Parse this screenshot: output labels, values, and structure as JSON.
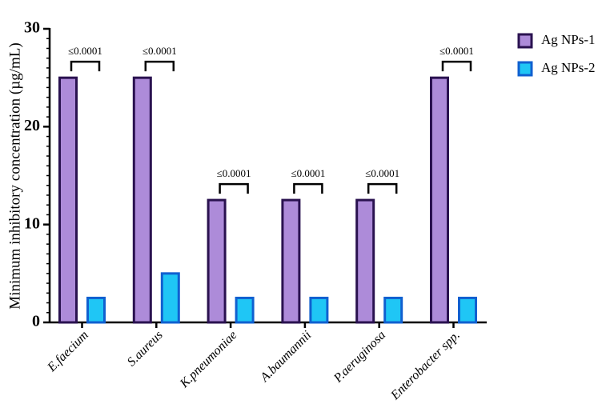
{
  "chart_data": {
    "type": "bar",
    "ylabel": "Minimum inhibitory concentration (µg/mL)",
    "categories": [
      "E.faecium",
      "S.aureus",
      "K.pneumoniae",
      "A.baumannii",
      "P.aeruginosa",
      "Enterobacter spp."
    ],
    "series": [
      {
        "name": "Ag NPs-1",
        "color": "#ad8bd9",
        "edge": "#2a1250",
        "values": [
          25,
          25,
          12.5,
          12.5,
          12.5,
          25
        ]
      },
      {
        "name": "Ag NPs-2",
        "color": "#1fc6f5",
        "edge": "#1060d0",
        "values": [
          2.5,
          5,
          2.5,
          2.5,
          2.5,
          2.5
        ]
      }
    ],
    "annotations": [
      "≤0.0001",
      "≤0.0001",
      "≤0.0001",
      "≤0.0001",
      "≤0.0001",
      "≤0.0001"
    ],
    "ylim": [
      0,
      30
    ],
    "yticks": [
      0,
      10,
      20,
      30
    ],
    "legend": "upper right"
  }
}
